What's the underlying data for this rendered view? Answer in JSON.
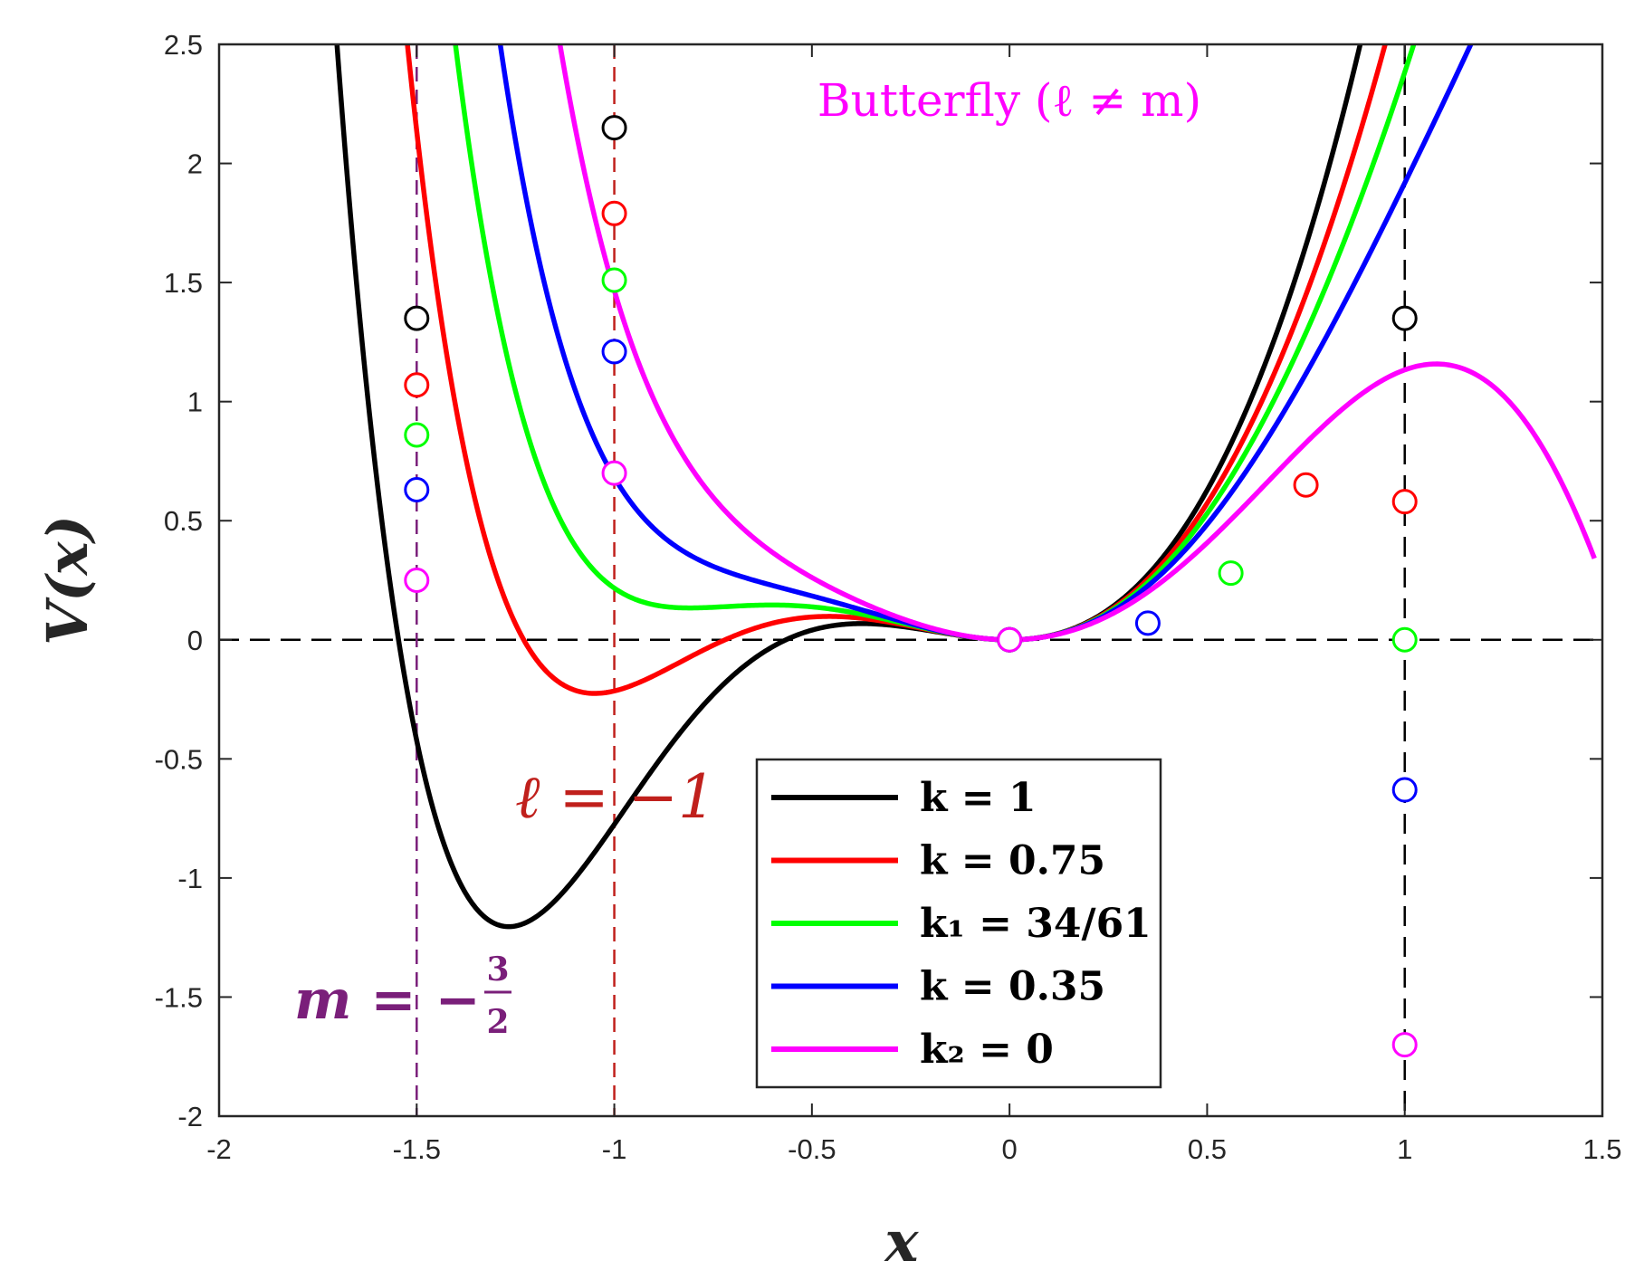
{
  "chart_data": {
    "type": "line",
    "title": "",
    "xlabel": "x",
    "ylabel": "V(x)",
    "xlim": [
      -2,
      1.5
    ],
    "ylim": [
      -2,
      2.5
    ],
    "xticks": [
      -2,
      -1.5,
      -1,
      -0.5,
      0,
      0.5,
      1,
      1.5
    ],
    "xtick_labels": [
      "-2",
      "-1.5",
      "-1",
      "-0.5",
      "0",
      "0.5",
      "1",
      "1.5"
    ],
    "yticks": [
      -2,
      -1.5,
      -1,
      -0.5,
      0,
      0.5,
      1,
      1.5,
      2,
      2.5
    ],
    "ytick_labels": [
      "-2",
      "-1.5",
      "-1",
      "-0.5",
      "0",
      "0.5",
      "1",
      "1.5",
      "2",
      "2.5"
    ],
    "grid": false,
    "legend_position": "bottom-center",
    "reference_lines": [
      {
        "orientation": "horizontal",
        "value": 0,
        "color": "#000000",
        "style": "dashed"
      },
      {
        "orientation": "vertical",
        "value": -1.5,
        "color": "#7a1f7a",
        "style": "dashed"
      },
      {
        "orientation": "vertical",
        "value": -1,
        "color": "#c0201c",
        "style": "dashed"
      },
      {
        "orientation": "vertical",
        "value": 1,
        "color": "#000000",
        "style": "dashed"
      }
    ],
    "annotations": {
      "butterfly": {
        "text": "Butterfly (ℓ ≠ m)",
        "color": "#ff00ff"
      },
      "ell": {
        "text": "ℓ = −1",
        "color": "#c0201c"
      },
      "m_prefix": {
        "text": "m = −",
        "color": "#7a1f7a"
      },
      "m_num": {
        "text": "3",
        "color": "#7a1f7a"
      },
      "m_den": {
        "text": "2",
        "color": "#7a1f7a"
      }
    },
    "series": [
      {
        "name": "k = 1",
        "k": 1,
        "color": "#000000",
        "markers": [
          [
            -1.5,
            1.35
          ],
          [
            -1,
            2.15
          ],
          [
            0,
            0
          ],
          [
            1,
            1.35
          ]
        ]
      },
      {
        "name": "k = 0.75",
        "k": 0.75,
        "color": "#ff0000",
        "markers": [
          [
            -1.5,
            1.07
          ],
          [
            -1,
            1.79
          ],
          [
            0,
            0
          ],
          [
            0.75,
            0.65
          ],
          [
            1,
            0.58
          ]
        ]
      },
      {
        "name": "k₁ = 34/61",
        "k": 0.5574,
        "color": "#00ff00",
        "markers": [
          [
            -1.5,
            0.86
          ],
          [
            -1,
            1.51
          ],
          [
            0,
            0
          ],
          [
            0.56,
            0.28
          ],
          [
            1,
            0
          ]
        ]
      },
      {
        "name": "k = 0.35",
        "k": 0.35,
        "color": "#0000ff",
        "markers": [
          [
            -1.5,
            0.63
          ],
          [
            -1,
            1.21
          ],
          [
            0,
            0
          ],
          [
            0.35,
            0.07
          ],
          [
            1,
            -0.63
          ]
        ]
      },
      {
        "name": "k₂ = 0",
        "k": 0,
        "color": "#ff00ff",
        "markers": [
          [
            -1.5,
            0.25
          ],
          [
            -1,
            0.7
          ],
          [
            0,
            0
          ],
          [
            1,
            -1.7
          ]
        ]
      }
    ]
  }
}
